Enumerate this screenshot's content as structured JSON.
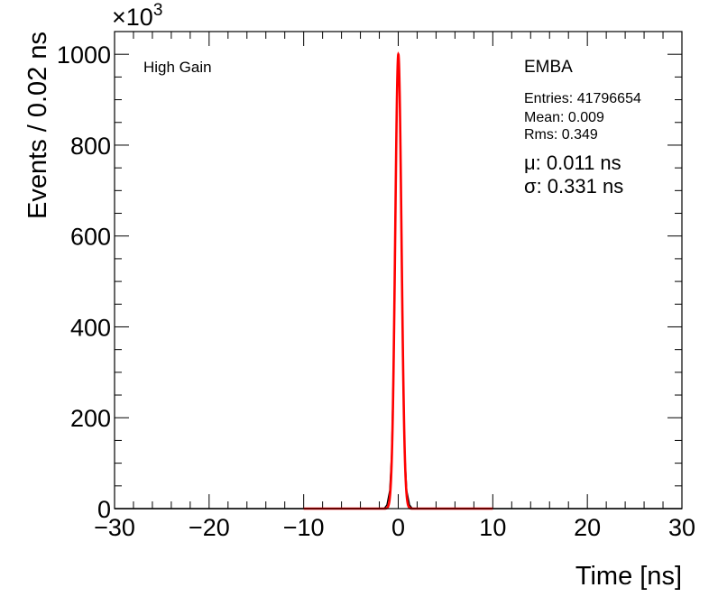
{
  "chart_data": {
    "type": "line",
    "xlabel": "Time [ns]",
    "ylabel": "Events / 0.02 ns",
    "y_multiplier": "×10",
    "y_multiplier_exp": "3",
    "xlim": [
      -30,
      30
    ],
    "ylim": [
      0,
      1050
    ],
    "x_ticks": [
      -30,
      -20,
      -10,
      0,
      10,
      20,
      30
    ],
    "x_tick_labels": [
      "−30",
      "−20",
      "−10",
      "0",
      "10",
      "20",
      "30"
    ],
    "y_ticks": [
      0,
      200,
      400,
      600,
      800,
      1000
    ],
    "y_tick_labels": [
      "0",
      "200",
      "400",
      "600",
      "800",
      "1000"
    ],
    "grid": false,
    "series": [
      {
        "type": "histogram",
        "color": "#000000",
        "x": [
          -1.5,
          -1.2,
          -0.9,
          -0.7,
          -0.5,
          -0.35,
          -0.2,
          -0.1,
          0.0,
          0.1,
          0.2,
          0.35,
          0.5,
          0.7,
          0.9,
          1.2,
          1.5
        ],
        "y": [
          0,
          8,
          40,
          120,
          320,
          600,
          830,
          960,
          1000,
          960,
          830,
          600,
          320,
          120,
          40,
          8,
          0
        ]
      },
      {
        "type": "fit",
        "color": "#ff0000",
        "x_range": [
          -10,
          10
        ],
        "amplitude": 1000,
        "mean": 0.011,
        "sigma": 0.331
      }
    ],
    "annotations": {
      "gain": "High Gain",
      "partition": "EMBA",
      "entries": "Entries: 41796654",
      "mean": "Mean: 0.009",
      "rms": "Rms: 0.349",
      "mu": "μ: 0.011 ns",
      "sigma": "σ: 0.331 ns"
    }
  }
}
